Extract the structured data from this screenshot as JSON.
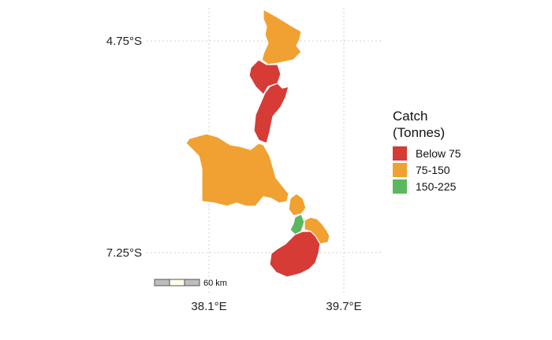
{
  "map": {
    "lat_labels": [
      "4.75°S",
      "7.25°S"
    ],
    "lon_labels": [
      "38.1°E",
      "39.7°E"
    ],
    "legend": {
      "title_line1": "Catch",
      "title_line2": "(Tonnes)",
      "items": [
        {
          "label": "Below 75",
          "color": "#d63b36"
        },
        {
          "label": "75-150",
          "color": "#f0a132"
        },
        {
          "label": "150-225",
          "color": "#5cb85c"
        }
      ]
    },
    "scale_bar": {
      "label": "60 km"
    },
    "regions": [
      {
        "name": "region-north-tip",
        "class": "75-150"
      },
      {
        "name": "region-north-central",
        "class": "Below 75"
      },
      {
        "name": "region-north-lower",
        "class": "Below 75"
      },
      {
        "name": "region-west-large",
        "class": "75-150"
      },
      {
        "name": "region-central-small",
        "class": "75-150"
      },
      {
        "name": "region-central-green",
        "class": "150-225"
      },
      {
        "name": "region-east-small",
        "class": "75-150"
      },
      {
        "name": "region-south",
        "class": "Below 75"
      }
    ]
  }
}
